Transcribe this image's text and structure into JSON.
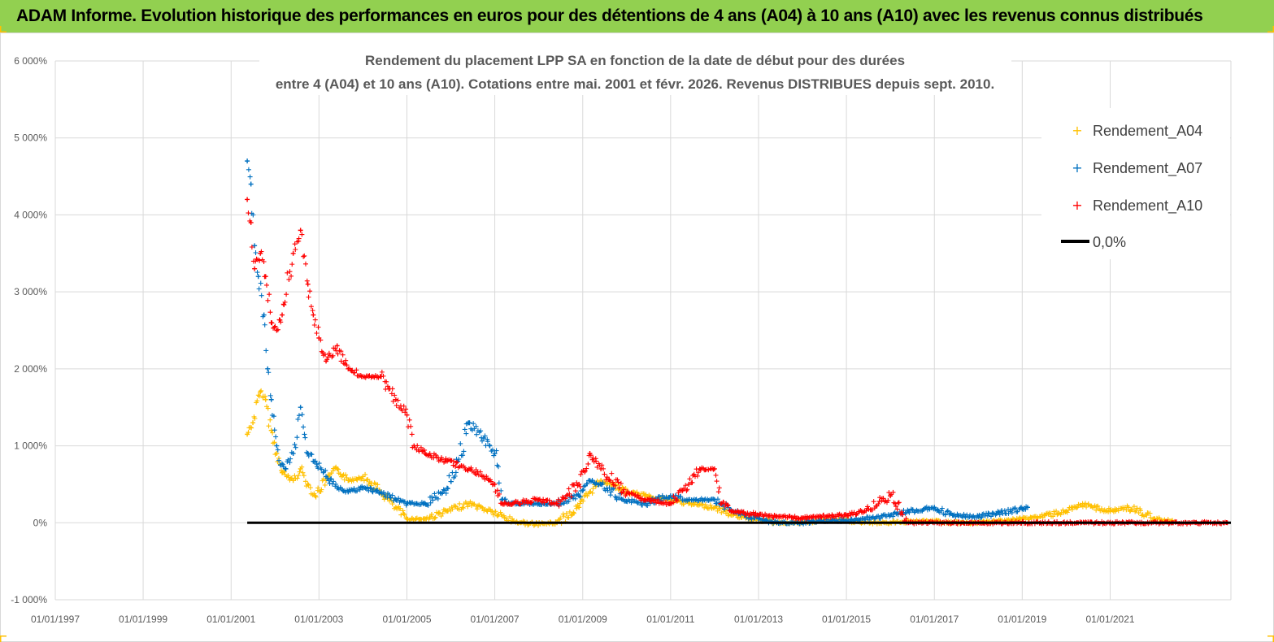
{
  "banner": {
    "text": "ADAM Informe. Evolution historique des performances en euros pour des détentions de 4 ans (A04) à 10 ans (A10) avec les revenus connus distribués"
  },
  "colors": {
    "banner_bg": "#92d050",
    "corner_marks": "#ffc000",
    "series_a04": "#ffc000",
    "series_a07": "#0070c0",
    "series_a10": "#ff0000",
    "zero_line": "#000000",
    "grid": "#d9d9d9"
  },
  "chart_data": {
    "type": "scatter",
    "title_lines": [
      "Rendement du placement LPP SA en fonction de la date de début pour des durées",
      "entre 4 (A04) et 10 ans (A10).  Cotations entre mai. 2001 et févr. 2026. Revenus DISTRIBUES depuis sept. 2010."
    ],
    "xlabel": "",
    "ylabel": "",
    "x_range": [
      "1997-01-01",
      "2023-10-01"
    ],
    "x_ticks": [
      "01/01/1997",
      "01/01/1999",
      "01/01/2001",
      "01/01/2003",
      "01/01/2005",
      "01/01/2007",
      "01/01/2009",
      "01/01/2011",
      "01/01/2013",
      "01/01/2015",
      "01/01/2017",
      "01/01/2019",
      "01/01/2021"
    ],
    "ylim": [
      -1000,
      6000
    ],
    "y_ticks": [
      "-1 000%",
      "0%",
      "1 000%",
      "2 000%",
      "3 000%",
      "4 000%",
      "5 000%",
      "6 000%"
    ],
    "y_tick_values": [
      -1000,
      0,
      1000,
      2000,
      3000,
      4000,
      5000,
      6000
    ],
    "grid": "vertical and horizontal",
    "legend_position": "top-right",
    "series": [
      {
        "name": "Rendement_A04",
        "marker": "+",
        "color": "#ffc000",
        "points": [
          [
            "2001-05-15",
            1150
          ],
          [
            "2001-07-01",
            1300
          ],
          [
            "2001-09-01",
            1700
          ],
          [
            "2001-10-15",
            1600
          ],
          [
            "2001-12-01",
            1200
          ],
          [
            "2002-01-15",
            900
          ],
          [
            "2002-03-01",
            650
          ],
          [
            "2002-06-01",
            550
          ],
          [
            "2002-08-01",
            700
          ],
          [
            "2002-10-01",
            500
          ],
          [
            "2002-12-01",
            350
          ],
          [
            "2003-03-01",
            550
          ],
          [
            "2003-06-01",
            700
          ],
          [
            "2003-09-01",
            550
          ],
          [
            "2004-01-01",
            600
          ],
          [
            "2004-06-01",
            400
          ],
          [
            "2004-10-01",
            200
          ],
          [
            "2005-01-01",
            50
          ],
          [
            "2005-06-01",
            50
          ],
          [
            "2005-12-01",
            150
          ],
          [
            "2006-06-01",
            250
          ],
          [
            "2006-12-01",
            150
          ],
          [
            "2007-06-01",
            20
          ],
          [
            "2007-12-01",
            -20
          ],
          [
            "2008-06-01",
            0
          ],
          [
            "2008-12-01",
            200
          ],
          [
            "2009-03-01",
            400
          ],
          [
            "2009-06-01",
            550
          ],
          [
            "2009-09-01",
            500
          ],
          [
            "2010-01-01",
            400
          ],
          [
            "2010-06-01",
            350
          ],
          [
            "2011-01-01",
            300
          ],
          [
            "2011-06-01",
            250
          ],
          [
            "2012-01-01",
            200
          ],
          [
            "2012-06-01",
            100
          ],
          [
            "2013-01-01",
            50
          ],
          [
            "2013-06-01",
            0
          ],
          [
            "2014-01-01",
            0
          ],
          [
            "2014-06-01",
            30
          ],
          [
            "2015-01-01",
            30
          ],
          [
            "2015-06-01",
            0
          ],
          [
            "2016-01-01",
            0
          ],
          [
            "2016-06-01",
            20
          ],
          [
            "2017-01-01",
            20
          ],
          [
            "2017-06-01",
            0
          ],
          [
            "2018-01-01",
            0
          ],
          [
            "2018-06-01",
            20
          ],
          [
            "2019-01-01",
            50
          ],
          [
            "2019-06-01",
            80
          ],
          [
            "2020-01-01",
            150
          ],
          [
            "2020-06-01",
            230
          ],
          [
            "2021-01-01",
            150
          ],
          [
            "2021-06-01",
            200
          ],
          [
            "2022-01-01",
            50
          ],
          [
            "2022-06-01",
            30
          ]
        ]
      },
      {
        "name": "Rendement_A07",
        "marker": "+",
        "color": "#0070c0",
        "points": [
          [
            "2001-05-15",
            4700
          ],
          [
            "2001-06-15",
            4400
          ],
          [
            "2001-07-15",
            3600
          ],
          [
            "2001-08-15",
            3200
          ],
          [
            "2001-10-01",
            2700
          ],
          [
            "2001-11-01",
            2000
          ],
          [
            "2001-12-01",
            1600
          ],
          [
            "2002-01-15",
            1000
          ],
          [
            "2002-02-15",
            750
          ],
          [
            "2002-04-01",
            700
          ],
          [
            "2002-06-01",
            900
          ],
          [
            "2002-08-01",
            1500
          ],
          [
            "2002-10-01",
            900
          ],
          [
            "2002-12-01",
            800
          ],
          [
            "2003-03-01",
            600
          ],
          [
            "2003-06-01",
            450
          ],
          [
            "2003-09-01",
            400
          ],
          [
            "2004-01-01",
            450
          ],
          [
            "2004-06-01",
            400
          ],
          [
            "2004-10-01",
            300
          ],
          [
            "2005-01-01",
            250
          ],
          [
            "2005-06-01",
            250
          ],
          [
            "2005-12-01",
            450
          ],
          [
            "2006-03-01",
            800
          ],
          [
            "2006-06-01",
            1300
          ],
          [
            "2006-10-01",
            1100
          ],
          [
            "2007-01-01",
            900
          ],
          [
            "2007-03-01",
            300
          ],
          [
            "2007-06-01",
            250
          ],
          [
            "2008-01-01",
            250
          ],
          [
            "2008-06-01",
            250
          ],
          [
            "2008-12-01",
            350
          ],
          [
            "2009-03-01",
            550
          ],
          [
            "2009-06-01",
            500
          ],
          [
            "2009-12-01",
            300
          ],
          [
            "2010-06-01",
            250
          ],
          [
            "2011-01-01",
            350
          ],
          [
            "2011-06-01",
            300
          ],
          [
            "2012-01-01",
            300
          ],
          [
            "2012-06-01",
            150
          ],
          [
            "2013-01-01",
            50
          ],
          [
            "2013-06-01",
            0
          ],
          [
            "2014-01-01",
            0
          ],
          [
            "2014-06-01",
            30
          ],
          [
            "2015-01-01",
            30
          ],
          [
            "2015-06-01",
            50
          ],
          [
            "2016-01-01",
            100
          ],
          [
            "2016-06-01",
            150
          ],
          [
            "2017-01-01",
            200
          ],
          [
            "2017-06-01",
            100
          ],
          [
            "2018-01-01",
            80
          ],
          [
            "2018-06-01",
            120
          ],
          [
            "2019-01-01",
            180
          ],
          [
            "2019-02-15",
            200
          ]
        ]
      },
      {
        "name": "Rendement_A10",
        "marker": "+",
        "color": "#ff0000",
        "points": [
          [
            "2001-05-15",
            4200
          ],
          [
            "2001-06-15",
            3900
          ],
          [
            "2001-07-15",
            3300
          ],
          [
            "2001-09-01",
            3500
          ],
          [
            "2001-10-15",
            3200
          ],
          [
            "2001-12-01",
            2600
          ],
          [
            "2002-01-15",
            2500
          ],
          [
            "2002-03-01",
            2700
          ],
          [
            "2002-06-01",
            3500
          ],
          [
            "2002-08-01",
            3800
          ],
          [
            "2002-10-01",
            3100
          ],
          [
            "2002-11-15",
            2700
          ],
          [
            "2003-01-01",
            2400
          ],
          [
            "2003-03-01",
            2100
          ],
          [
            "2003-06-01",
            2300
          ],
          [
            "2003-09-01",
            2000
          ],
          [
            "2004-01-01",
            1900
          ],
          [
            "2004-06-01",
            1900
          ],
          [
            "2004-10-01",
            1600
          ],
          [
            "2005-01-01",
            1400
          ],
          [
            "2005-03-01",
            1000
          ],
          [
            "2005-06-01",
            900
          ],
          [
            "2005-12-01",
            800
          ],
          [
            "2006-06-01",
            700
          ],
          [
            "2006-10-01",
            600
          ],
          [
            "2007-01-01",
            500
          ],
          [
            "2007-03-01",
            250
          ],
          [
            "2007-06-01",
            250
          ],
          [
            "2008-01-01",
            300
          ],
          [
            "2008-06-01",
            250
          ],
          [
            "2008-12-01",
            500
          ],
          [
            "2009-03-01",
            900
          ],
          [
            "2009-06-01",
            700
          ],
          [
            "2009-12-01",
            400
          ],
          [
            "2010-06-01",
            300
          ],
          [
            "2011-01-01",
            250
          ],
          [
            "2011-06-01",
            500
          ],
          [
            "2011-09-01",
            700
          ],
          [
            "2012-01-01",
            700
          ],
          [
            "2012-03-01",
            250
          ],
          [
            "2012-06-01",
            150
          ],
          [
            "2013-01-01",
            100
          ],
          [
            "2013-06-01",
            80
          ],
          [
            "2014-01-01",
            60
          ],
          [
            "2014-06-01",
            80
          ],
          [
            "2015-01-01",
            100
          ],
          [
            "2015-06-01",
            150
          ],
          [
            "2016-01-01",
            350
          ],
          [
            "2016-06-01",
            0
          ],
          [
            "2017-06-01",
            0
          ],
          [
            "2018-06-01",
            0
          ],
          [
            "2019-06-01",
            0
          ],
          [
            "2020-06-01",
            0
          ],
          [
            "2021-06-01",
            0
          ],
          [
            "2022-06-01",
            0
          ],
          [
            "2023-09-01",
            0
          ]
        ]
      }
    ],
    "reference_line": {
      "name": "0,0%",
      "value": 0,
      "x_start": "2001-05-15",
      "x_end": "2023-10-01",
      "color": "#000000"
    }
  }
}
